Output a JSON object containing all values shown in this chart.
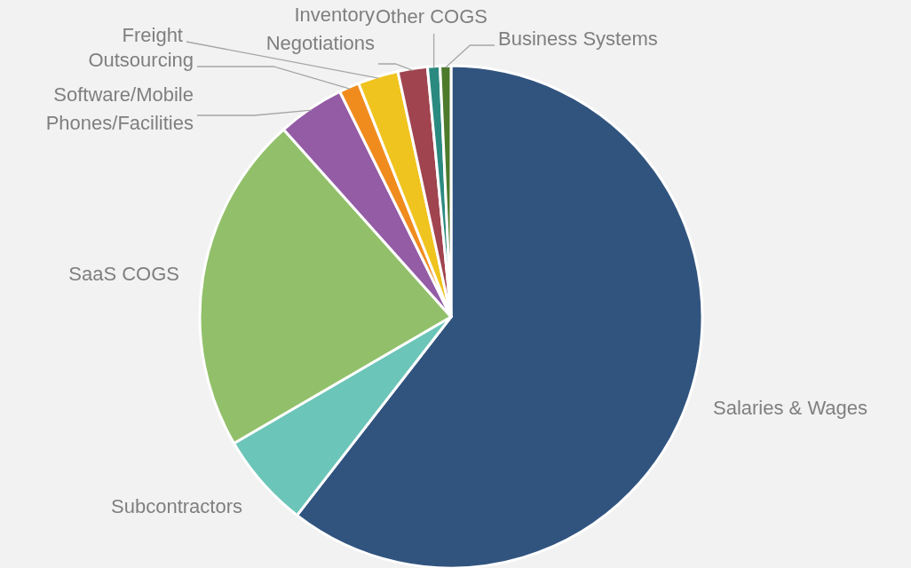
{
  "chart_data": {
    "type": "pie",
    "categories": [
      "Salaries & Wages",
      "Subcontractors",
      "SaaS COGS",
      "Software/Mobile Phones/Facilities",
      "Outsourcing",
      "Freight",
      "Inventory Negotiations",
      "Other COGS",
      "Business Systems"
    ],
    "values": [
      60.5,
      6.1,
      21.8,
      4.3,
      1.3,
      2.6,
      1.9,
      0.8,
      0.7
    ],
    "colors": [
      "#31547f",
      "#6cc5b9",
      "#92c06a",
      "#935ca5",
      "#f08c1e",
      "#f0c41e",
      "#a0444f",
      "#2b8a80",
      "#4e7a2c"
    ]
  }
}
